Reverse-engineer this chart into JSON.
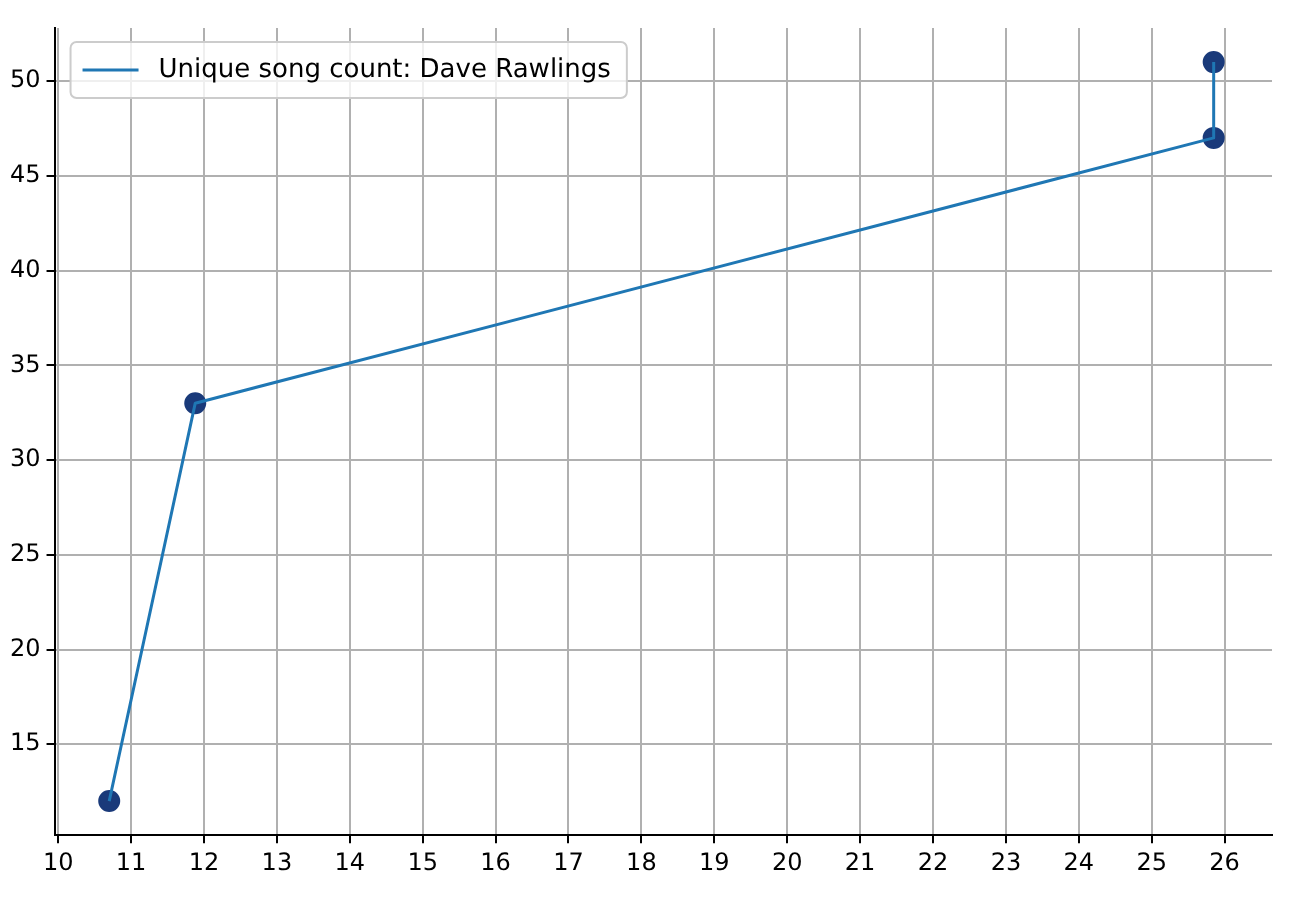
{
  "chart_data": {
    "type": "line",
    "x": [
      10.7,
      11.88,
      25.85,
      25.85
    ],
    "series": [
      {
        "name": "Unique song count: Dave Rawlings",
        "color": "#1f77b4",
        "values": [
          12,
          33,
          47,
          51
        ],
        "marker": "none"
      },
      {
        "type": "scatter",
        "color": "#1a3a7a",
        "values": [
          12,
          33,
          47,
          51
        ],
        "marker": "circle"
      }
    ],
    "xlim": [
      9.95,
      26.65
    ],
    "xticks": [
      10,
      11,
      12,
      13,
      14,
      15,
      16,
      17,
      18,
      19,
      20,
      21,
      22,
      23,
      24,
      25,
      26
    ],
    "ylim": [
      10.2,
      52.8
    ],
    "yticks": [
      15,
      20,
      25,
      30,
      35,
      40,
      45,
      50
    ],
    "grid": true,
    "legend": "top left"
  }
}
